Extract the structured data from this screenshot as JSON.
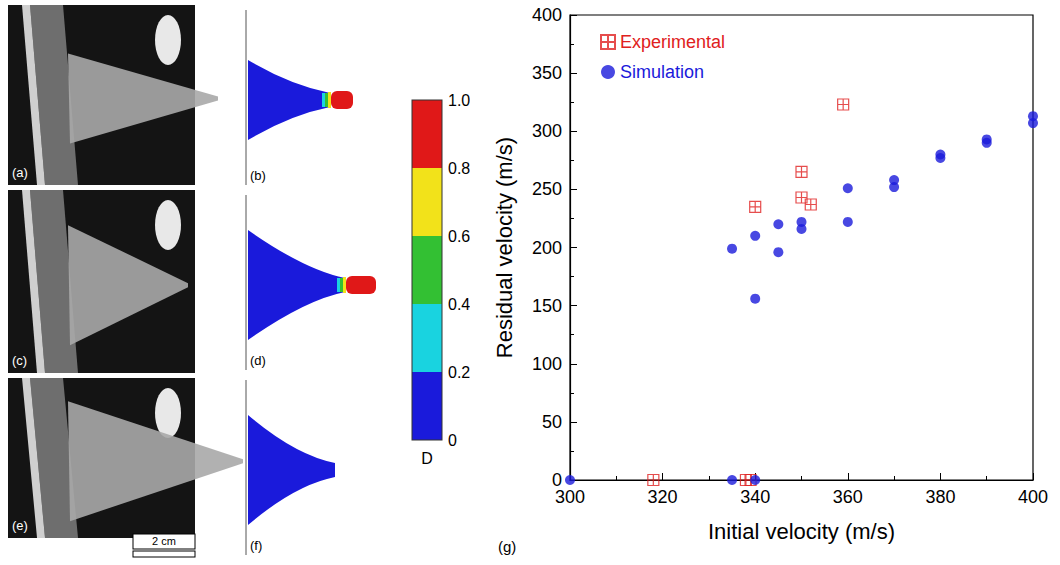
{
  "figure": {
    "photo_panels": [
      "(a)",
      "(c)",
      "(e)"
    ],
    "simulation_panels": [
      "(b)",
      "(d)",
      "(f)"
    ],
    "scale_bar": "2 cm",
    "colorbar": {
      "label": "D",
      "range": [
        0,
        1
      ],
      "ticks": [
        {
          "value": 0,
          "label": "0"
        },
        {
          "value": 0.2,
          "label": "0.2"
        },
        {
          "value": 0.4,
          "label": "0.4"
        },
        {
          "value": 0.6,
          "label": "0.6"
        },
        {
          "value": 0.8,
          "label": "0.8"
        },
        {
          "value": 1,
          "label": "1.0"
        }
      ],
      "colors": [
        "#1a1adb",
        "#19d3e0",
        "#33c033",
        "#f2e21a",
        "#e01818"
      ]
    },
    "chart_label": "(g)"
  },
  "chart_data": {
    "type": "scatter",
    "x_label": "Initial velocity (m/s)",
    "y_label": "Residual velocity (m/s)",
    "xlim": [
      300,
      400
    ],
    "xticks": [
      300,
      320,
      340,
      360,
      380,
      400
    ],
    "ylim": [
      0,
      400
    ],
    "yticks": [
      0,
      50,
      100,
      150,
      200,
      250,
      300,
      350,
      400
    ],
    "grid": false,
    "legend": "upper left",
    "series": [
      {
        "name": "Experimental",
        "color": "#e02020",
        "marker": "square-plus",
        "x": [
          318,
          338,
          339,
          340,
          350,
          350,
          352,
          359
        ],
        "values": [
          0,
          0,
          0,
          235,
          243,
          265,
          237,
          323
        ]
      },
      {
        "name": "Simulation",
        "color": "#1a1adb",
        "marker": "circle",
        "x": [
          300,
          335,
          335,
          340,
          340,
          340,
          345,
          345,
          350,
          350,
          360,
          360,
          370,
          370,
          380,
          380,
          390,
          390,
          400,
          400
        ],
        "values": [
          0,
          0,
          199,
          0,
          210,
          156,
          220,
          196,
          216,
          222,
          251,
          222,
          258,
          252,
          280,
          277,
          293,
          290,
          313,
          307
        ]
      }
    ]
  }
}
